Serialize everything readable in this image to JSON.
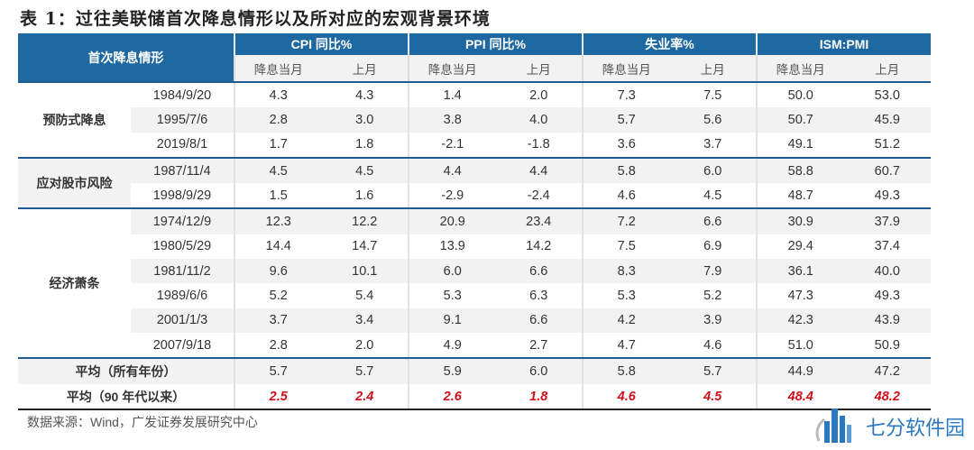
{
  "title": "表 1：过往美联储首次降息情形以及所对应的宏观背景环境",
  "header": {
    "row_label": "首次降息情形",
    "groups": [
      "CPI 同比%",
      "PPI 同比%",
      "失业率%",
      "ISM:PMI"
    ],
    "sub": [
      "降息当月",
      "上月"
    ]
  },
  "groups": [
    {
      "label": "预防式降息",
      "rows": [
        {
          "date": "1984/9/20",
          "v": [
            "4.3",
            "4.3",
            "1.4",
            "2.0",
            "7.3",
            "7.5",
            "50.0",
            "53.0"
          ]
        },
        {
          "date": "1995/7/6",
          "v": [
            "2.8",
            "3.0",
            "3.8",
            "4.0",
            "5.7",
            "5.6",
            "50.7",
            "45.9"
          ]
        },
        {
          "date": "2019/8/1",
          "v": [
            "1.7",
            "1.8",
            "-2.1",
            "-1.8",
            "3.6",
            "3.7",
            "49.1",
            "51.2"
          ]
        }
      ]
    },
    {
      "label": "应对股市风险",
      "rows": [
        {
          "date": "1987/11/4",
          "v": [
            "4.5",
            "4.5",
            "4.4",
            "4.4",
            "5.8",
            "6.0",
            "58.8",
            "60.7"
          ]
        },
        {
          "date": "1998/9/29",
          "v": [
            "1.5",
            "1.6",
            "-2.9",
            "-2.4",
            "4.6",
            "4.5",
            "48.7",
            "49.3"
          ]
        }
      ]
    },
    {
      "label": "经济萧条",
      "rows": [
        {
          "date": "1974/12/9",
          "v": [
            "12.3",
            "12.2",
            "20.9",
            "23.4",
            "7.2",
            "6.6",
            "30.9",
            "37.9"
          ]
        },
        {
          "date": "1980/5/29",
          "v": [
            "14.4",
            "14.7",
            "13.9",
            "14.2",
            "7.5",
            "6.9",
            "29.4",
            "37.4"
          ]
        },
        {
          "date": "1981/11/2",
          "v": [
            "9.6",
            "10.1",
            "6.0",
            "6.6",
            "8.3",
            "7.9",
            "36.1",
            "40.0"
          ]
        },
        {
          "date": "1989/6/6",
          "v": [
            "5.2",
            "5.4",
            "5.3",
            "6.3",
            "5.3",
            "5.2",
            "47.3",
            "49.3"
          ]
        },
        {
          "date": "2001/1/3",
          "v": [
            "3.7",
            "3.4",
            "9.1",
            "6.6",
            "4.2",
            "3.9",
            "42.3",
            "43.9"
          ]
        },
        {
          "date": "2007/9/18",
          "v": [
            "2.8",
            "2.0",
            "4.9",
            "2.7",
            "4.7",
            "4.6",
            "51.0",
            "50.9"
          ]
        }
      ]
    }
  ],
  "averages": [
    {
      "label": "平均（所有年份）",
      "v": [
        "5.7",
        "5.7",
        "5.9",
        "6.0",
        "5.8",
        "5.7",
        "44.9",
        "47.2"
      ]
    },
    {
      "label": "平均（90 年代以来）",
      "v": [
        "2.5",
        "2.4",
        "2.6",
        "1.8",
        "4.6",
        "4.5",
        "48.4",
        "48.2"
      ]
    }
  ],
  "source": "数据来源：Wind，广发证券发展研究中心",
  "watermark": "七分软件园",
  "colors": {
    "header": "#1f69a3",
    "highlight": "#d0101a"
  }
}
